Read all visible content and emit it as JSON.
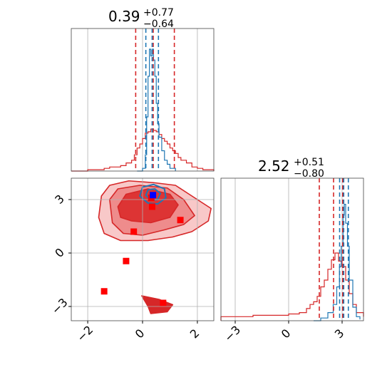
{
  "chart_data": {
    "type": "corner",
    "colors": {
      "blue": "#1f77b4",
      "red": "#d62728",
      "marker_red": "#ff0000",
      "marker_blue": "#0000ff",
      "grid": "#b0b0b0"
    },
    "param1": {
      "title": {
        "value": "0.39",
        "plus": "+0.77",
        "minus": "−0.64"
      },
      "xlim": [
        -2.6,
        2.6
      ],
      "ticks": [
        -2,
        0,
        2
      ],
      "tick_labels": [
        "−2",
        "0",
        "2"
      ],
      "red_quantiles": [
        -0.25,
        0.39,
        1.16
      ],
      "blue_quantiles": [
        0.12,
        0.35,
        0.58
      ],
      "hist_red": [
        [
          -2.6,
          0
        ],
        [
          -2.0,
          0.01
        ],
        [
          -1.6,
          0.01
        ],
        [
          -1.4,
          0.02
        ],
        [
          -1.2,
          0.03
        ],
        [
          -1.0,
          0.03
        ],
        [
          -0.8,
          0.04
        ],
        [
          -0.6,
          0.06
        ],
        [
          -0.4,
          0.08
        ],
        [
          -0.3,
          0.12
        ],
        [
          -0.2,
          0.17
        ],
        [
          -0.1,
          0.2
        ],
        [
          0,
          0.24
        ],
        [
          0.1,
          0.28
        ],
        [
          0.2,
          0.29
        ],
        [
          0.3,
          0.31
        ],
        [
          0.4,
          0.3
        ],
        [
          0.5,
          0.29
        ],
        [
          0.6,
          0.27
        ],
        [
          0.7,
          0.24
        ],
        [
          0.8,
          0.22
        ],
        [
          0.9,
          0.2
        ],
        [
          1.0,
          0.17
        ],
        [
          1.1,
          0.15
        ],
        [
          1.2,
          0.13
        ],
        [
          1.3,
          0.1
        ],
        [
          1.4,
          0.08
        ],
        [
          1.6,
          0.06
        ],
        [
          1.8,
          0.03
        ],
        [
          2.0,
          0.02
        ],
        [
          2.2,
          0.01
        ],
        [
          2.6,
          0
        ]
      ],
      "hist_blue": [
        [
          -0.2,
          0
        ],
        [
          0,
          0.02
        ],
        [
          0.1,
          0.12
        ],
        [
          0.15,
          0.4
        ],
        [
          0.2,
          0.7
        ],
        [
          0.25,
          0.9
        ],
        [
          0.3,
          0.85
        ],
        [
          0.35,
          0.9
        ],
        [
          0.4,
          0.82
        ],
        [
          0.45,
          0.7
        ],
        [
          0.5,
          0.5
        ],
        [
          0.55,
          0.35
        ],
        [
          0.6,
          0.25
        ],
        [
          0.7,
          0.15
        ],
        [
          0.8,
          0.08
        ],
        [
          0.9,
          0.05
        ],
        [
          1.0,
          0.02
        ],
        [
          1.2,
          0
        ]
      ]
    },
    "param2": {
      "title": {
        "value": "2.52",
        "plus": "+0.51",
        "minus": "−0.80"
      },
      "xlim": [
        -3.8,
        4.2
      ],
      "ticks": [
        -3,
        0,
        3
      ],
      "tick_labels": [
        "−3",
        "0",
        "3"
      ],
      "red_quantiles": [
        1.72,
        2.52,
        3.03
      ],
      "blue_quantiles": [
        2.86,
        3.09,
        3.35
      ],
      "hist_red": [
        [
          -3.8,
          0.03
        ],
        [
          -2,
          0.04
        ],
        [
          0,
          0.05
        ],
        [
          0.6,
          0.06
        ],
        [
          1.0,
          0.09
        ],
        [
          1.2,
          0.12
        ],
        [
          1.4,
          0.14
        ],
        [
          1.6,
          0.18
        ],
        [
          1.8,
          0.25
        ],
        [
          2.0,
          0.3
        ],
        [
          2.2,
          0.38
        ],
        [
          2.4,
          0.45
        ],
        [
          2.6,
          0.5
        ],
        [
          2.8,
          0.44
        ],
        [
          3.0,
          0.4
        ],
        [
          3.2,
          0.3
        ],
        [
          3.4,
          0.2
        ],
        [
          3.6,
          0.12
        ],
        [
          3.8,
          0.06
        ],
        [
          4.2,
          0.03
        ]
      ],
      "hist_blue": [
        [
          1.4,
          0
        ],
        [
          1.8,
          0.02
        ],
        [
          2.2,
          0.06
        ],
        [
          2.5,
          0.12
        ],
        [
          2.7,
          0.25
        ],
        [
          2.85,
          0.4
        ],
        [
          2.95,
          0.55
        ],
        [
          3.05,
          0.78
        ],
        [
          3.12,
          0.86
        ],
        [
          3.2,
          0.72
        ],
        [
          3.3,
          0.55
        ],
        [
          3.4,
          0.3
        ],
        [
          3.6,
          0.1
        ],
        [
          3.8,
          0.03
        ],
        [
          4.0,
          0.01
        ]
      ]
    },
    "joint": {
      "xlim": [
        -2.6,
        2.6
      ],
      "ylim": [
        -3.8,
        4.2
      ],
      "red_contours": [
        {
          "level": 1,
          "fill": "#f8c8c8",
          "points": [
            [
              -1.5,
              3.2
            ],
            [
              -1.2,
              3.8
            ],
            [
              -0.5,
              4.05
            ],
            [
              0.4,
              3.95
            ],
            [
              1.2,
              3.8
            ],
            [
              1.7,
              3.3
            ],
            [
              2.2,
              2.8
            ],
            [
              2.5,
              2.5
            ],
            [
              2.4,
              1.8
            ],
            [
              1.8,
              1.2
            ],
            [
              1.1,
              0.9
            ],
            [
              0.2,
              0.7
            ],
            [
              -0.8,
              0.7
            ],
            [
              -1.4,
              1.1
            ],
            [
              -1.6,
              2.0
            ]
          ]
        },
        {
          "level": 2,
          "fill": "#ee8c8c",
          "points": [
            [
              -1.2,
              3.0
            ],
            [
              -0.9,
              3.6
            ],
            [
              -0.1,
              3.8
            ],
            [
              0.9,
              3.65
            ],
            [
              1.5,
              3.0
            ],
            [
              1.9,
              2.1
            ],
            [
              1.5,
              1.6
            ],
            [
              0.8,
              1.3
            ],
            [
              0.0,
              1.0
            ],
            [
              -0.7,
              1.1
            ],
            [
              -1.1,
              1.7
            ]
          ]
        },
        {
          "level": 3,
          "fill": "#dd3434",
          "points": [
            [
              -0.9,
              2.6
            ],
            [
              -0.6,
              3.3
            ],
            [
              0.2,
              3.6
            ],
            [
              1.0,
              3.3
            ],
            [
              1.3,
              2.7
            ],
            [
              1.0,
              2.0
            ],
            [
              0.3,
              1.7
            ],
            [
              -0.4,
              1.8
            ],
            [
              -0.8,
              2.0
            ]
          ]
        },
        {
          "level": 4,
          "fill": "#d62728",
          "points": [
            [
              -0.03,
              -2.4
            ],
            [
              0.6,
              -2.6
            ],
            [
              1.1,
              -2.9
            ],
            [
              0.9,
              -3.3
            ],
            [
              0.3,
              -3.4
            ],
            [
              0.2,
              -3.0
            ]
          ]
        }
      ],
      "blue_contours": [
        {
          "points": [
            [
              -0.1,
              3.2
            ],
            [
              0.0,
              3.7
            ],
            [
              0.4,
              3.85
            ],
            [
              0.8,
              3.6
            ],
            [
              0.85,
              3.1
            ],
            [
              0.55,
              2.75
            ],
            [
              0.2,
              2.8
            ]
          ]
        },
        {
          "points": [
            [
              0.12,
              3.25
            ],
            [
              0.2,
              3.55
            ],
            [
              0.45,
              3.6
            ],
            [
              0.65,
              3.35
            ],
            [
              0.55,
              3.0
            ],
            [
              0.3,
              2.95
            ]
          ]
        }
      ],
      "red_markers": [
        [
          0.35,
          2.6
        ],
        [
          0.32,
          3.1
        ],
        [
          1.38,
          1.85
        ],
        [
          -0.32,
          1.2
        ],
        [
          -0.6,
          -0.45
        ],
        [
          -1.4,
          -2.15
        ],
        [
          0.75,
          -2.8
        ]
      ],
      "blue_markers": [
        [
          0.38,
          3.25
        ]
      ]
    }
  }
}
